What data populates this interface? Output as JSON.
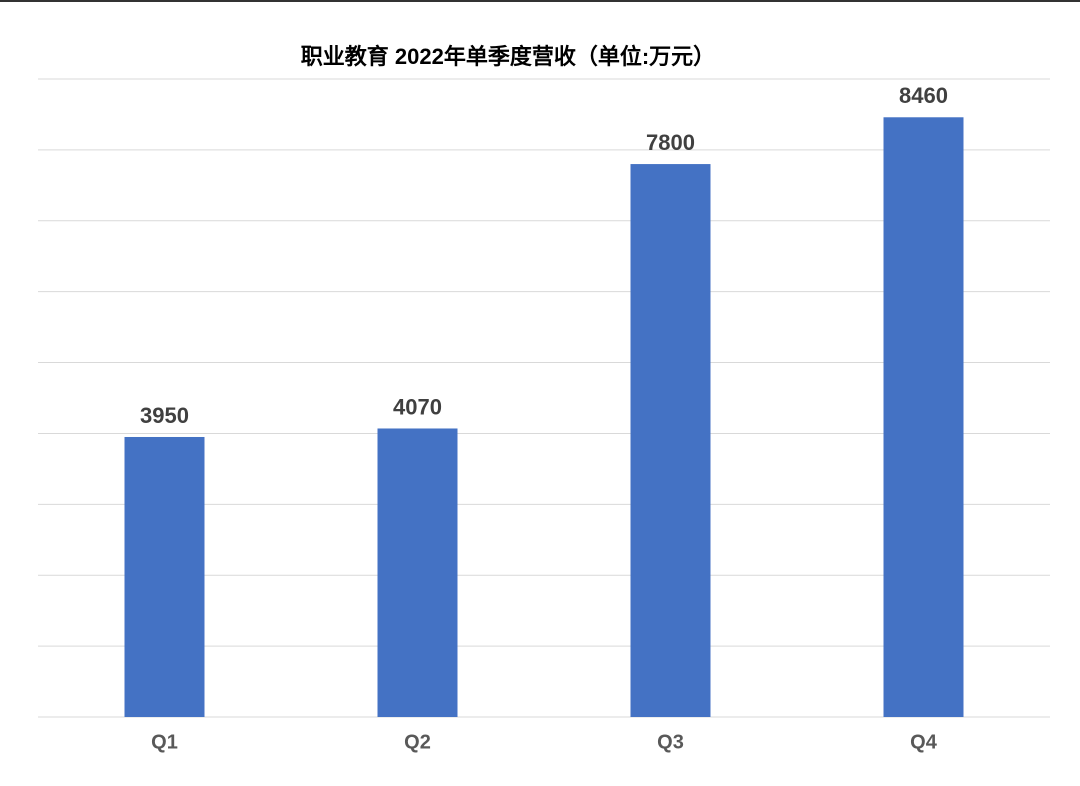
{
  "chart_data": {
    "type": "bar",
    "title": "职业教育 2022年单季度营收（单位:万元）",
    "categories": [
      "Q1",
      "Q2",
      "Q3",
      "Q4"
    ],
    "values": [
      3950,
      4070,
      7800,
      8460
    ],
    "color": "#4472c4",
    "ylim": [
      0,
      9000
    ],
    "yticks": [
      0,
      1000,
      2000,
      3000,
      4000,
      5000,
      6000,
      7000,
      8000,
      9000
    ],
    "grid": true
  }
}
